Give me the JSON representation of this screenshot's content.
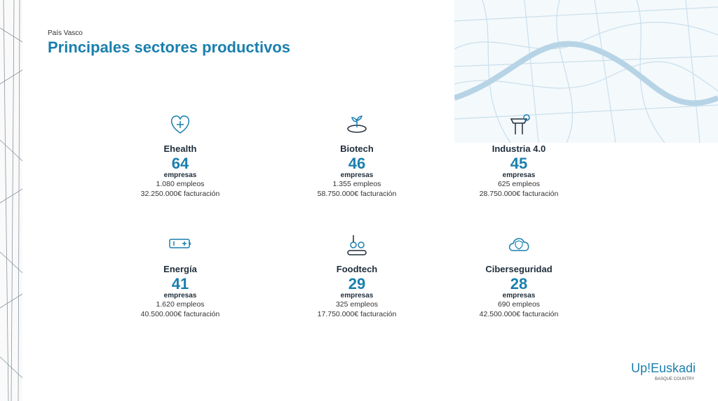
{
  "header": {
    "subtitle": "País Vasco",
    "title": "Principales sectores productivos"
  },
  "sectors": [
    {
      "name": "Ehealth",
      "count": "64",
      "unit": "empresas",
      "jobs": "1.080 empleos",
      "revenue": "32.250.000€ facturación"
    },
    {
      "name": "Biotech",
      "count": "46",
      "unit": "empresas",
      "jobs": "1.355 empleos",
      "revenue": "58.750.000€ facturación"
    },
    {
      "name": "Industria 4.0",
      "count": "45",
      "unit": "empresas",
      "jobs": "625 empleos",
      "revenue": "28.750.000€ facturación"
    },
    {
      "name": "Energía",
      "count": "41",
      "unit": "empresas",
      "jobs": "1.620 empleos",
      "revenue": "40.500.000€ facturación"
    },
    {
      "name": "Foodtech",
      "count": "29",
      "unit": "empresas",
      "jobs": "325 empleos",
      "revenue": "17.750.000€ facturación"
    },
    {
      "name": "Ciberseguridad",
      "count": "28",
      "unit": "empresas",
      "jobs": "690 empleos",
      "revenue": "42.500.000€ facturación"
    }
  ],
  "logo": {
    "brand_up": "Up!",
    "brand_name": "Euskadi",
    "tagline": "BASQUE COUNTRY"
  }
}
